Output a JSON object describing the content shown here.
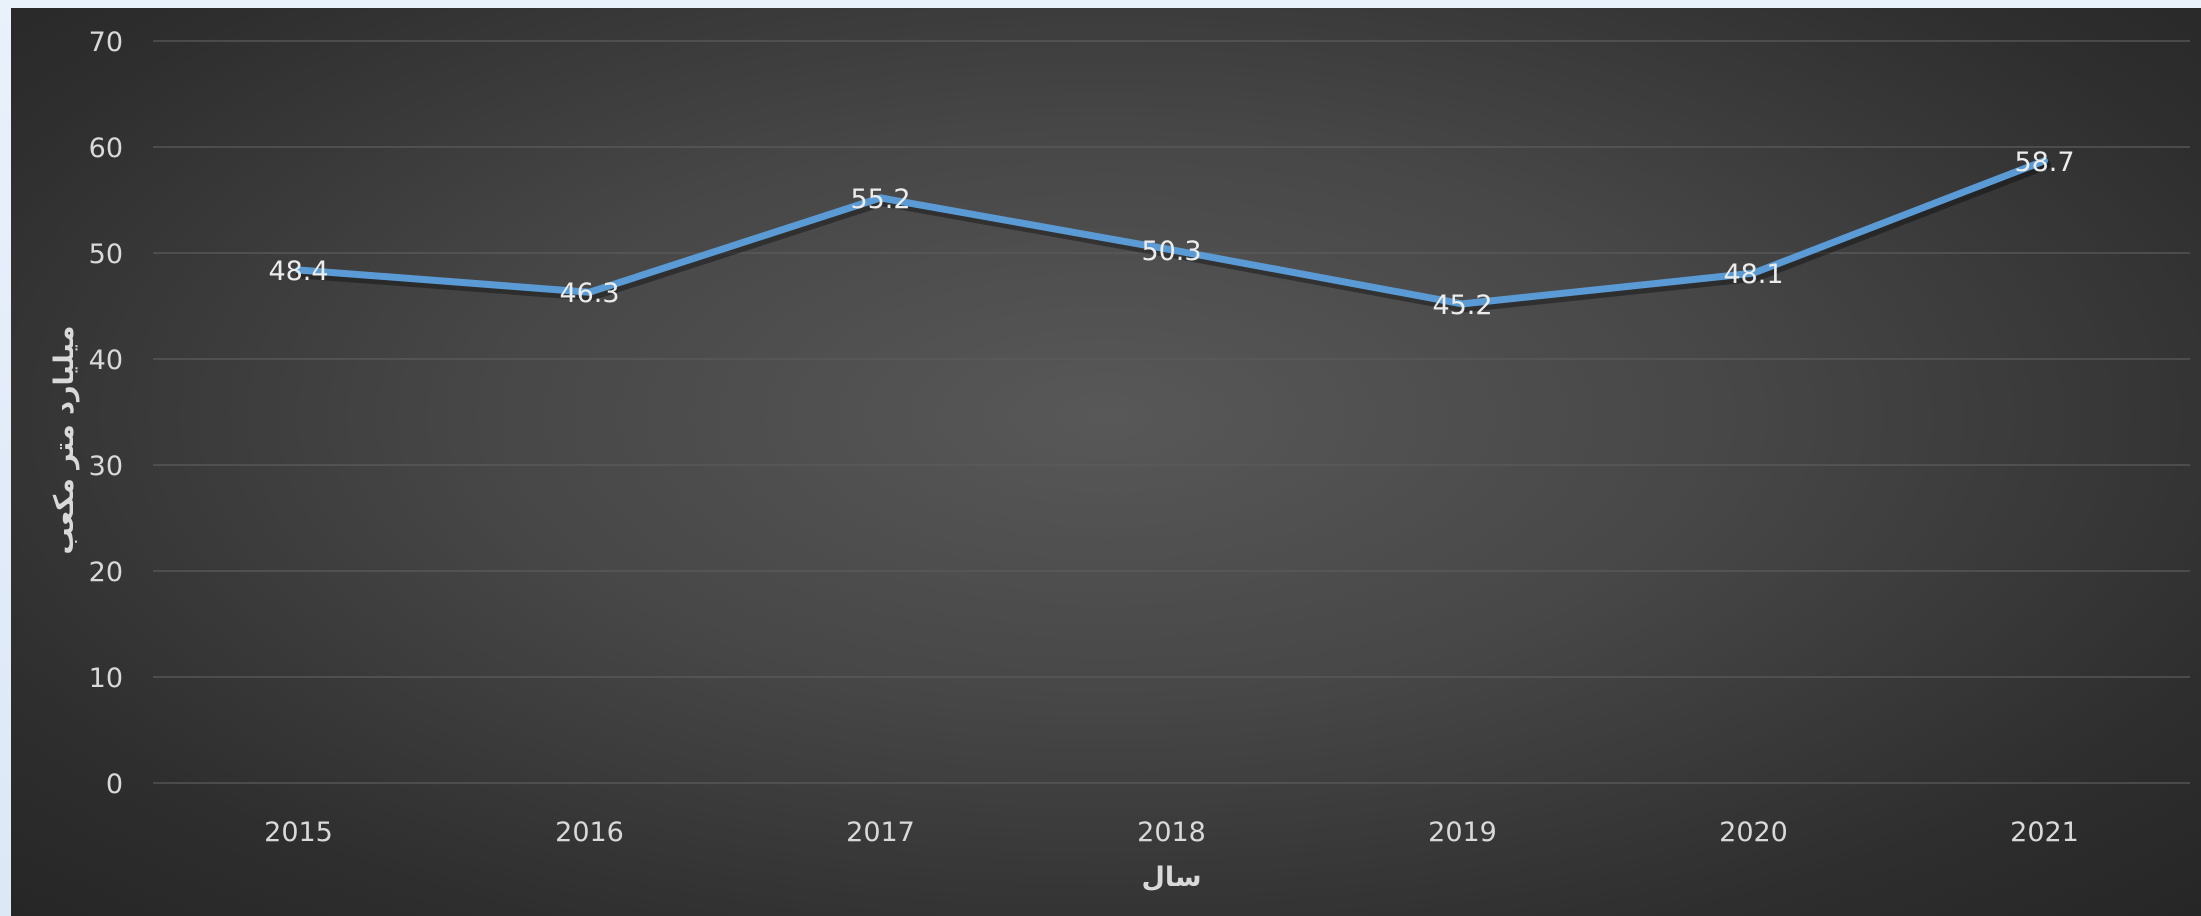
{
  "chart_data": {
    "type": "line",
    "title": "",
    "xlabel": "سال",
    "ylabel": "میلیارد متر مکعب",
    "categories": [
      "2015",
      "2016",
      "2017",
      "2018",
      "2019",
      "2020",
      "2021"
    ],
    "series": [
      {
        "values": [
          48.4,
          46.3,
          55.2,
          50.3,
          45.2,
          48.1,
          58.7
        ]
      }
    ],
    "ylim": [
      0,
      70
    ],
    "yticks": [
      "0",
      "10",
      "20",
      "30",
      "40",
      "50",
      "60",
      "70"
    ],
    "grid": true,
    "legend": "none",
    "data_labels": true,
    "colors": {
      "line": "#5b9bd5",
      "background": "#404040"
    }
  }
}
